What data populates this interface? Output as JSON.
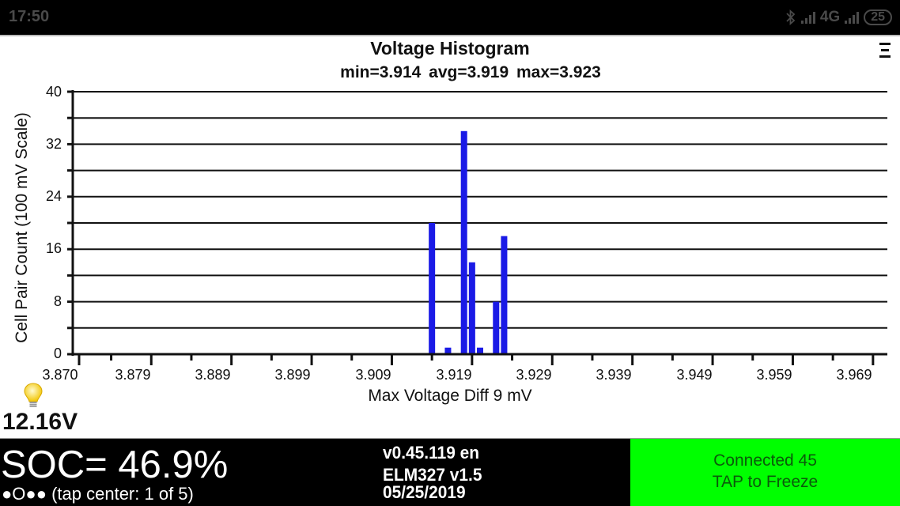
{
  "status_bar": {
    "time": "17:50",
    "network": "4G",
    "battery": "25",
    "icons": [
      "bluetooth-icon",
      "signal-icon",
      "signal-icon",
      "battery-icon"
    ]
  },
  "menu": {
    "icon": "menu-icon"
  },
  "chart_data": {
    "type": "bar",
    "title": "Voltage Histogram",
    "subtitle": "min=3.914  avg=3.919  max=3.923",
    "xlabel": "Max Voltage Diff 9 mV",
    "ylabel": "Cell Pair Count (100 mV Scale)",
    "ylim": [
      0,
      40
    ],
    "xlim": [
      3.87,
      3.97
    ],
    "grid": true,
    "y_ticks": [
      "0",
      "8",
      "16",
      "24",
      "32",
      "40"
    ],
    "x_ticks": [
      "3.870",
      "3.879",
      "3.889",
      "3.899",
      "3.909",
      "3.919",
      "3.929",
      "3.939",
      "3.949",
      "3.959",
      "3.969"
    ],
    "bar_color": "#1a1ae6",
    "x": [
      3.914,
      3.916,
      3.918,
      3.919,
      3.92,
      3.922,
      3.923
    ],
    "values": [
      20,
      1,
      34,
      14,
      1,
      8,
      18
    ]
  },
  "aux": {
    "bulb_icon": "lightbulb-icon",
    "voltage": "12.16V"
  },
  "footer": {
    "soc": "SOC= 46.9%",
    "pager": "●O●● (tap center: 1 of 5)",
    "version": "v0.45.119 en",
    "adapter": "ELM327 v1.5",
    "date": "05/25/2019",
    "connection": {
      "line1": "Connected 45",
      "line2": "TAP to Freeze",
      "bg_color": "#00ff00"
    }
  }
}
